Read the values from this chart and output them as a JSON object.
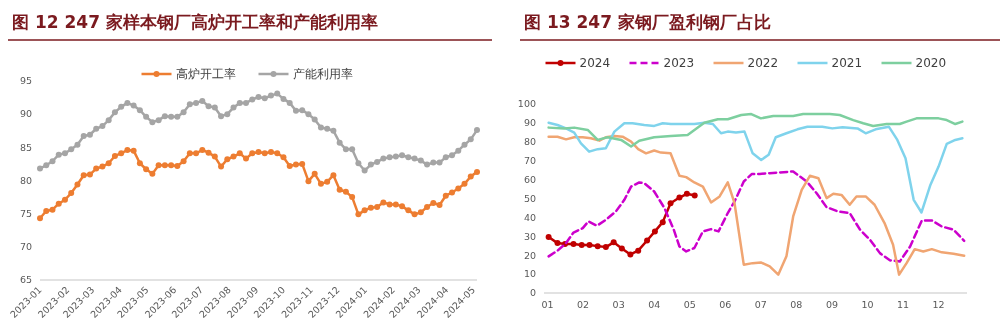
{
  "chart_data": [
    {
      "type": "line",
      "title": "图 12 247 家样本钢厂高炉开工率和产能利用率",
      "x": [
        "2023-01-01",
        "2023-01-08",
        "2023-01-15",
        "2023-01-22",
        "2023-01-29",
        "2023-02-05",
        "2023-02-12",
        "2023-02-19",
        "2023-02-26",
        "2023-03-05",
        "2023-03-12",
        "2023-03-19",
        "2023-03-26",
        "2023-04-02",
        "2023-04-09",
        "2023-04-16",
        "2023-04-23",
        "2023-04-30",
        "2023-05-07",
        "2023-05-14",
        "2023-05-21",
        "2023-05-28",
        "2023-06-04",
        "2023-06-11",
        "2023-06-18",
        "2023-06-25",
        "2023-07-02",
        "2023-07-09",
        "2023-07-16",
        "2023-07-23",
        "2023-07-30",
        "2023-08-06",
        "2023-08-13",
        "2023-08-20",
        "2023-08-27",
        "2023-09-03",
        "2023-09-10",
        "2023-09-17",
        "2023-09-24",
        "2023-10-01",
        "2023-10-08",
        "2023-10-15",
        "2023-10-22",
        "2023-10-29",
        "2023-11-05",
        "2023-11-12",
        "2023-11-19",
        "2023-11-26",
        "2023-12-03",
        "2023-12-10",
        "2023-12-17",
        "2023-12-24",
        "2023-12-31",
        "2024-01-07",
        "2024-01-14",
        "2024-01-21",
        "2024-01-28",
        "2024-02-04",
        "2024-02-11",
        "2024-02-18",
        "2024-02-25",
        "2024-03-03",
        "2024-03-10",
        "2024-03-17",
        "2024-03-24",
        "2024-03-31",
        "2024-04-07",
        "2024-04-14",
        "2024-04-21",
        "2024-04-28",
        "2024-05-05"
      ],
      "series": [
        {
          "name": "高炉开工率",
          "color": "#ed7d31",
          "values": [
            74.3,
            75.4,
            75.6,
            76.5,
            77.1,
            78.1,
            79.4,
            80.8,
            80.9,
            81.8,
            82.1,
            82.6,
            83.7,
            84.1,
            84.6,
            84.5,
            82.6,
            81.7,
            81.0,
            82.3,
            82.3,
            82.3,
            82.2,
            82.9,
            84.1,
            84.1,
            84.6,
            84.2,
            83.6,
            82.1,
            83.2,
            83.6,
            84.1,
            83.3,
            84.1,
            84.3,
            84.1,
            84.3,
            84.1,
            83.5,
            82.2,
            82.4,
            82.5,
            79.9,
            81.0,
            79.5,
            79.8,
            80.8,
            78.6,
            78.3,
            77.5,
            74.9,
            75.5,
            75.9,
            76.0,
            76.7,
            76.4,
            76.4,
            76.1,
            75.5,
            74.9,
            75.2,
            76.0,
            76.6,
            76.3,
            77.7,
            78.2,
            78.8,
            79.5,
            80.6,
            81.3
          ]
        },
        {
          "name": "产能利用率",
          "color": "#a5a5a5",
          "values": [
            81.8,
            82.3,
            82.9,
            83.9,
            84.1,
            84.7,
            85.4,
            86.7,
            86.9,
            87.8,
            88.2,
            89.1,
            90.3,
            91.1,
            91.7,
            91.3,
            90.6,
            89.6,
            88.8,
            89.1,
            89.7,
            89.6,
            89.6,
            90.3,
            91.5,
            91.7,
            92.0,
            91.2,
            91.0,
            89.7,
            90.0,
            91.0,
            91.7,
            91.7,
            92.2,
            92.6,
            92.4,
            92.8,
            93.1,
            92.3,
            91.7,
            90.5,
            90.6,
            90.0,
            89.2,
            88.0,
            87.8,
            87.5,
            85.7,
            84.7,
            84.7,
            82.6,
            81.5,
            82.4,
            82.8,
            83.3,
            83.5,
            83.6,
            83.8,
            83.5,
            83.3,
            83.0,
            82.4,
            82.7,
            82.7,
            83.5,
            83.8,
            84.5,
            85.4,
            86.2,
            87.6
          ]
        }
      ],
      "xlim": [
        "2023-01-01",
        "2024-05-05"
      ],
      "xticks": [
        "2023-01",
        "2023-02",
        "2023-03",
        "2023-04",
        "2023-05",
        "2023-06",
        "2023-07",
        "2023-08",
        "2023-09",
        "2023-10",
        "2023-11",
        "2023-12",
        "2024-01",
        "2024-02",
        "2024-03",
        "2024-04",
        "2024-05"
      ],
      "ylim": [
        65,
        95
      ],
      "yticks": [
        65,
        70,
        75,
        80,
        85,
        90,
        95
      ],
      "legend": "top",
      "marker": "circle",
      "line_style": "solid"
    },
    {
      "type": "line",
      "title": "图 13 247 家钢厂盈利钢厂占比",
      "xlim": [
        0.9,
        12.8
      ],
      "xticks": [
        {
          "value": 1,
          "label": "01"
        },
        {
          "value": 2,
          "label": "02"
        },
        {
          "value": 3,
          "label": "03"
        },
        {
          "value": 4,
          "label": "04"
        },
        {
          "value": 5,
          "label": "05"
        },
        {
          "value": 6,
          "label": "06"
        },
        {
          "value": 7,
          "label": "07"
        },
        {
          "value": 8,
          "label": "08"
        },
        {
          "value": 9,
          "label": "09"
        },
        {
          "value": 10,
          "label": "10"
        },
        {
          "value": 11,
          "label": "11"
        },
        {
          "value": 12,
          "label": "12"
        }
      ],
      "ylim": [
        0,
        100
      ],
      "yticks": [
        0,
        10,
        20,
        30,
        40,
        50,
        60,
        70,
        80,
        90,
        100
      ],
      "legend": "top",
      "series": [
        {
          "name": "2024",
          "color": "#c00000",
          "marker": "circle",
          "line_style": "solid",
          "x": [
            1.03,
            1.28,
            1.49,
            1.73,
            1.96,
            2.18,
            2.41,
            2.64,
            2.86,
            3.09,
            3.33,
            3.55,
            3.8,
            4.02,
            4.24,
            4.46,
            4.71,
            4.92,
            5.14
          ],
          "values": [
            29.6,
            26.4,
            25.9,
            25.9,
            25.4,
            25.4,
            24.8,
            24.3,
            26.8,
            23.6,
            20.4,
            22.4,
            27.8,
            32.6,
            37.5,
            47.5,
            50.5,
            52.5,
            51.6
          ]
        },
        {
          "name": "2023",
          "color": "#cc00cc",
          "marker": "none",
          "line_style": "dashed",
          "x": [
            1.03,
            1.28,
            1.52,
            1.73,
            1.99,
            2.15,
            2.39,
            2.64,
            2.92,
            3.16,
            3.35,
            3.58,
            3.72,
            4.0,
            4.29,
            4.55,
            4.71,
            4.9,
            5.13,
            5.37,
            5.6,
            5.81,
            6.07,
            6.26,
            6.52,
            6.75,
            6.97,
            7.25,
            7.91,
            8.29,
            8.57,
            8.85,
            9.18,
            9.5,
            9.79,
            10.07,
            10.35,
            10.63,
            10.91,
            11.2,
            11.53,
            11.81,
            12.09,
            12.42,
            12.72
          ],
          "values": [
            19.4,
            22.4,
            26.4,
            32,
            34.3,
            37.9,
            35.6,
            38.7,
            43.1,
            49.3,
            56.3,
            58.5,
            58.1,
            53.7,
            44.9,
            33.5,
            24.6,
            22,
            23.8,
            32.6,
            33.8,
            32.6,
            42.3,
            48.4,
            59,
            63,
            63,
            63.4,
            64.3,
            59,
            52.8,
            45.4,
            43.1,
            42.3,
            33.5,
            28.2,
            21.1,
            17.3,
            16.7,
            24.6,
            38.4,
            38.4,
            35.2,
            33.5,
            27.6
          ]
        },
        {
          "name": "2022",
          "color": "#f0a572",
          "marker": "none",
          "line_style": "solid",
          "x": [
            1.03,
            1.28,
            1.52,
            1.75,
            1.99,
            2.22,
            2.46,
            2.64,
            2.88,
            3.11,
            3.35,
            3.55,
            3.77,
            4.0,
            4.19,
            4.46,
            4.71,
            4.9,
            5.13,
            5.37,
            5.6,
            5.84,
            6.07,
            6.26,
            6.52,
            6.77,
            7.0,
            7.25,
            7.49,
            7.72,
            7.91,
            8.15,
            8.38,
            8.62,
            8.85,
            9.04,
            9.27,
            9.5,
            9.69,
            9.95,
            10.2,
            10.48,
            10.72,
            10.89,
            11.1,
            11.33,
            11.57,
            11.81,
            12.09,
            12.42,
            12.72
          ],
          "values": [
            82.7,
            82.7,
            81.3,
            82.4,
            82.4,
            81.9,
            80.6,
            82.4,
            83.1,
            82.7,
            80.1,
            76.1,
            73.9,
            75.4,
            74.3,
            73.9,
            62,
            61.3,
            58.5,
            56.3,
            47.9,
            51.1,
            58.5,
            47.5,
            15,
            15.8,
            16.2,
            14.1,
            9.7,
            19.4,
            40.5,
            54.6,
            62,
            60.7,
            50.2,
            52.5,
            51.9,
            46.7,
            51.1,
            51.1,
            46.7,
            37,
            25.5,
            9.7,
            15.8,
            23.2,
            22,
            23.2,
            21.5,
            20.8,
            19.7
          ]
        },
        {
          "name": "2021",
          "color": "#7fd3ec",
          "marker": "none",
          "line_style": "solid",
          "x": [
            1.03,
            1.28,
            1.52,
            1.75,
            1.94,
            2.17,
            2.41,
            2.64,
            2.88,
            3.16,
            3.39,
            3.72,
            4.0,
            4.24,
            4.47,
            4.76,
            5.13,
            5.41,
            5.65,
            5.88,
            6.07,
            6.3,
            6.54,
            6.77,
            7.01,
            7.22,
            7.42,
            7.72,
            8.03,
            8.31,
            8.73,
            9.01,
            9.3,
            9.72,
            9.95,
            10.23,
            10.6,
            10.84,
            11.07,
            11.3,
            11.52,
            11.77,
            12.0,
            12.23,
            12.47,
            12.67
          ],
          "values": [
            90.1,
            88.9,
            87.1,
            84.9,
            79.2,
            74.8,
            76.1,
            76.6,
            85.4,
            89.8,
            89.8,
            88.9,
            88.4,
            89.8,
            89.4,
            89.4,
            89.4,
            90.1,
            89.4,
            84.5,
            85.4,
            84.9,
            85.4,
            73.9,
            70.4,
            73.1,
            82.4,
            84.5,
            86.6,
            88,
            88,
            87.1,
            87.7,
            87.1,
            84.5,
            86.6,
            88,
            81,
            71.3,
            49.3,
            42.6,
            57.2,
            66.9,
            78.9,
            81,
            81.9
          ]
        },
        {
          "name": "2020",
          "color": "#7dcf9f",
          "marker": "none",
          "line_style": "solid",
          "x": [
            1.03,
            1.47,
            1.75,
            2.13,
            2.41,
            2.69,
            3.07,
            3.35,
            3.58,
            4.0,
            4.47,
            4.94,
            5.41,
            5.79,
            6.07,
            6.45,
            6.73,
            7.0,
            7.35,
            7.91,
            8.19,
            8.94,
            9.22,
            9.6,
            9.88,
            10.16,
            10.54,
            10.91,
            11.1,
            11.38,
            12.0,
            12.23,
            12.47,
            12.67
          ],
          "values": [
            87.5,
            87.1,
            87.5,
            86.3,
            81,
            82.4,
            81,
            77.5,
            80.6,
            82.4,
            83.1,
            83.6,
            90.1,
            91.9,
            91.9,
            94.2,
            94.7,
            92.4,
            93.7,
            93.7,
            94.7,
            94.7,
            94.2,
            91.5,
            89.8,
            88.4,
            89.4,
            89.4,
            90.7,
            92.4,
            92.4,
            91.5,
            89.4,
            90.7
          ]
        }
      ]
    }
  ]
}
